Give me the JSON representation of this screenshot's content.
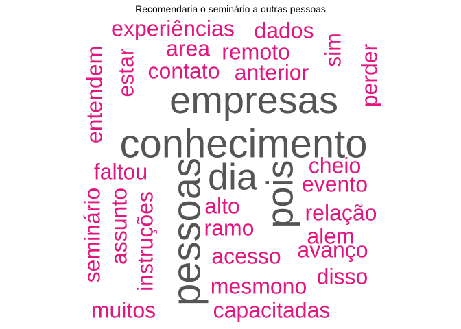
{
  "chart_data": {
    "type": "wordcloud",
    "title": "Recomendaria o seminário a outras pessoas",
    "colors": {
      "high": "#555555",
      "low": "#e0177f"
    },
    "words": [
      {
        "text": "conhecimento",
        "weight": 10,
        "rotated": false
      },
      {
        "text": "empresas",
        "weight": 9,
        "rotated": false
      },
      {
        "text": "pessoas",
        "weight": 9,
        "rotated": true
      },
      {
        "text": "dia",
        "weight": 8,
        "rotated": false
      },
      {
        "text": "pois",
        "weight": 8,
        "rotated": true
      },
      {
        "text": "experiências",
        "weight": 3,
        "rotated": false
      },
      {
        "text": "dados",
        "weight": 3,
        "rotated": false
      },
      {
        "text": "area",
        "weight": 3,
        "rotated": false
      },
      {
        "text": "remoto",
        "weight": 3,
        "rotated": false
      },
      {
        "text": "sim",
        "weight": 3,
        "rotated": true
      },
      {
        "text": "perder",
        "weight": 3,
        "rotated": true
      },
      {
        "text": "entendem",
        "weight": 3,
        "rotated": true
      },
      {
        "text": "estar",
        "weight": 3,
        "rotated": true
      },
      {
        "text": "contato",
        "weight": 3,
        "rotated": false
      },
      {
        "text": "anterior",
        "weight": 3,
        "rotated": false
      },
      {
        "text": "faltou",
        "weight": 3,
        "rotated": false
      },
      {
        "text": "cheio",
        "weight": 3,
        "rotated": false
      },
      {
        "text": "evento",
        "weight": 3,
        "rotated": false
      },
      {
        "text": "alto",
        "weight": 3,
        "rotated": false
      },
      {
        "text": "relação",
        "weight": 3,
        "rotated": false
      },
      {
        "text": "ramo",
        "weight": 3,
        "rotated": false
      },
      {
        "text": "alem",
        "weight": 3,
        "rotated": false
      },
      {
        "text": "seminário",
        "weight": 3,
        "rotated": true
      },
      {
        "text": "assunto",
        "weight": 3,
        "rotated": true
      },
      {
        "text": "instruções",
        "weight": 3,
        "rotated": true
      },
      {
        "text": "acesso",
        "weight": 3,
        "rotated": false
      },
      {
        "text": "avanço",
        "weight": 3,
        "rotated": false
      },
      {
        "text": "mesmono",
        "weight": 3,
        "rotated": false
      },
      {
        "text": "disso",
        "weight": 3,
        "rotated": false
      },
      {
        "text": "muitos",
        "weight": 3,
        "rotated": false
      },
      {
        "text": "capacitadas",
        "weight": 3,
        "rotated": false
      }
    ]
  }
}
